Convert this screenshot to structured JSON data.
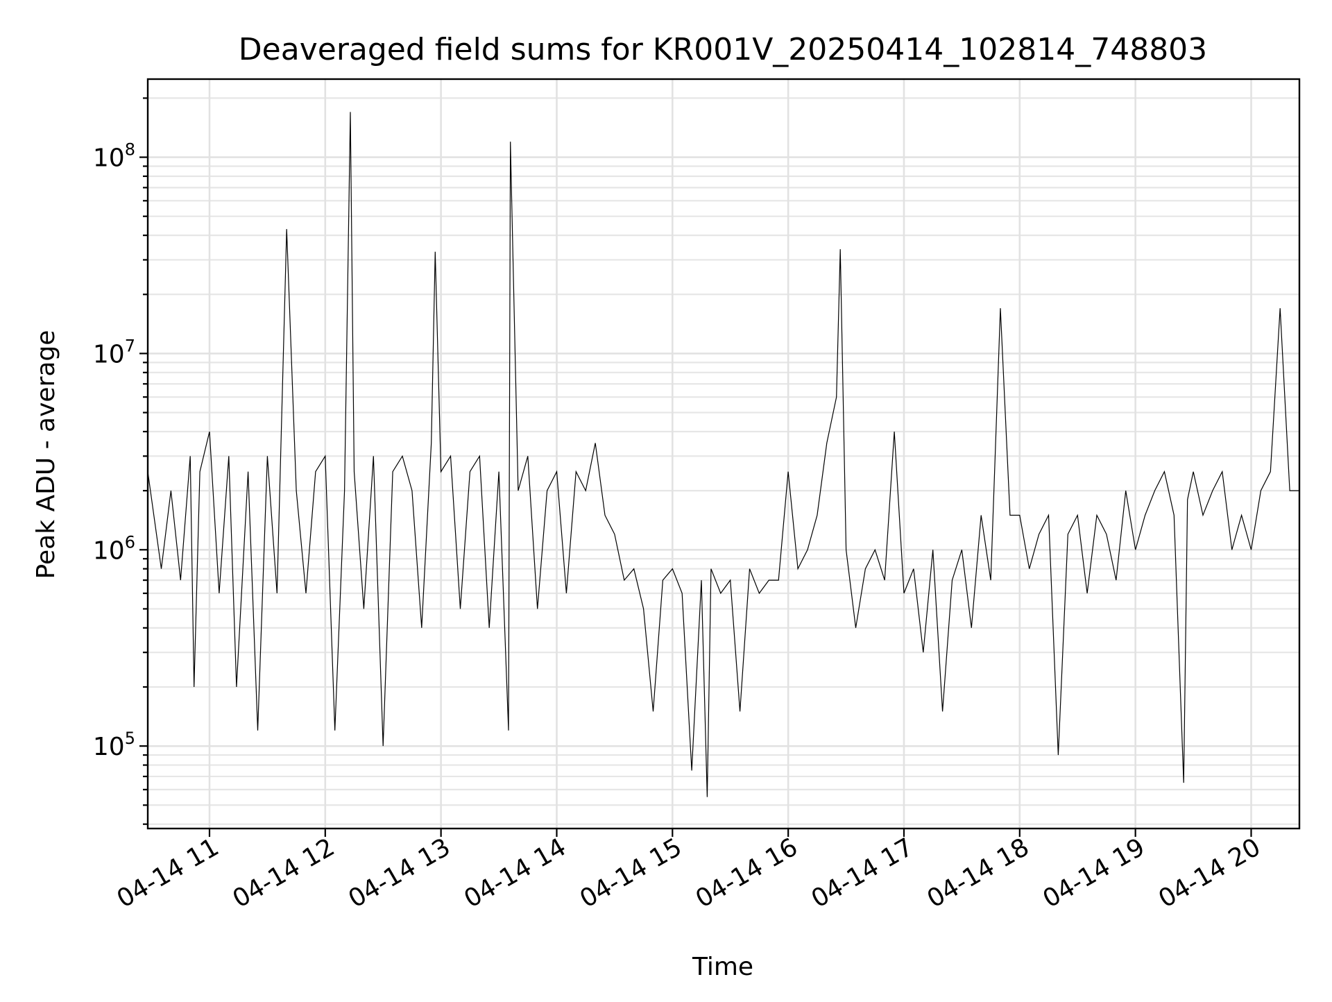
{
  "chart_data": {
    "type": "line",
    "title": "Deaveraged field sums for KR001V_20250414_102814_748803",
    "xlabel": "Time",
    "ylabel": "Peak ADU - average",
    "yscale": "log",
    "xlim": [
      "2025-04-14T10:28",
      "2025-04-14T20:25"
    ],
    "ylim": [
      38000,
      250000000
    ],
    "x_tick_labels": [
      "04-14 11",
      "04-14 12",
      "04-14 13",
      "04-14 14",
      "04-14 15",
      "04-14 16",
      "04-14 17",
      "04-14 18",
      "04-14 19",
      "04-14 20"
    ],
    "x_tick_values": [
      "2025-04-14T11:00",
      "2025-04-14T12:00",
      "2025-04-14T13:00",
      "2025-04-14T14:00",
      "2025-04-14T15:00",
      "2025-04-14T16:00",
      "2025-04-14T17:00",
      "2025-04-14T18:00",
      "2025-04-14T19:00",
      "2025-04-14T20:00"
    ],
    "y_tick_labels": [
      {
        "base": "10",
        "exp": "5",
        "value": 100000
      },
      {
        "base": "10",
        "exp": "6",
        "value": 1000000
      },
      {
        "base": "10",
        "exp": "7",
        "value": 10000000
      },
      {
        "base": "10",
        "exp": "8",
        "value": 100000000
      }
    ],
    "grid": true,
    "line_color": "#000000",
    "series": [
      {
        "x": [
          "2025-04-14T10:28",
          "2025-04-14T10:35",
          "2025-04-14T10:40",
          "2025-04-14T10:45",
          "2025-04-14T10:50",
          "2025-04-14T10:52",
          "2025-04-14T10:55",
          "2025-04-14T11:00",
          "2025-04-14T11:05",
          "2025-04-14T11:10",
          "2025-04-14T11:14",
          "2025-04-14T11:20",
          "2025-04-14T11:25",
          "2025-04-14T11:30",
          "2025-04-14T11:35",
          "2025-04-14T11:40",
          "2025-04-14T11:45",
          "2025-04-14T11:50",
          "2025-04-14T11:55",
          "2025-04-14T12:00",
          "2025-04-14T12:05",
          "2025-04-14T12:10",
          "2025-04-14T12:13",
          "2025-04-14T12:15",
          "2025-04-14T12:20",
          "2025-04-14T12:25",
          "2025-04-14T12:30",
          "2025-04-14T12:35",
          "2025-04-14T12:40",
          "2025-04-14T12:45",
          "2025-04-14T12:50",
          "2025-04-14T12:55",
          "2025-04-14T12:57",
          "2025-04-14T13:00",
          "2025-04-14T13:05",
          "2025-04-14T13:10",
          "2025-04-14T13:15",
          "2025-04-14T13:20",
          "2025-04-14T13:25",
          "2025-04-14T13:30",
          "2025-04-14T13:35",
          "2025-04-14T13:36",
          "2025-04-14T13:40",
          "2025-04-14T13:45",
          "2025-04-14T13:50",
          "2025-04-14T13:55",
          "2025-04-14T14:00",
          "2025-04-14T14:05",
          "2025-04-14T14:10",
          "2025-04-14T14:15",
          "2025-04-14T14:20",
          "2025-04-14T14:25",
          "2025-04-14T14:30",
          "2025-04-14T14:35",
          "2025-04-14T14:40",
          "2025-04-14T14:45",
          "2025-04-14T14:50",
          "2025-04-14T14:55",
          "2025-04-14T15:00",
          "2025-04-14T15:05",
          "2025-04-14T15:10",
          "2025-04-14T15:15",
          "2025-04-14T15:18",
          "2025-04-14T15:20",
          "2025-04-14T15:25",
          "2025-04-14T15:30",
          "2025-04-14T15:35",
          "2025-04-14T15:40",
          "2025-04-14T15:45",
          "2025-04-14T15:50",
          "2025-04-14T15:55",
          "2025-04-14T16:00",
          "2025-04-14T16:05",
          "2025-04-14T16:10",
          "2025-04-14T16:15",
          "2025-04-14T16:20",
          "2025-04-14T16:25",
          "2025-04-14T16:27",
          "2025-04-14T16:30",
          "2025-04-14T16:35",
          "2025-04-14T16:40",
          "2025-04-14T16:45",
          "2025-04-14T16:50",
          "2025-04-14T16:55",
          "2025-04-14T17:00",
          "2025-04-14T17:05",
          "2025-04-14T17:10",
          "2025-04-14T17:15",
          "2025-04-14T17:20",
          "2025-04-14T17:25",
          "2025-04-14T17:30",
          "2025-04-14T17:35",
          "2025-04-14T17:40",
          "2025-04-14T17:45",
          "2025-04-14T17:50",
          "2025-04-14T17:55",
          "2025-04-14T18:00",
          "2025-04-14T18:05",
          "2025-04-14T18:10",
          "2025-04-14T18:15",
          "2025-04-14T18:20",
          "2025-04-14T18:25",
          "2025-04-14T18:30",
          "2025-04-14T18:35",
          "2025-04-14T18:40",
          "2025-04-14T18:45",
          "2025-04-14T18:50",
          "2025-04-14T18:55",
          "2025-04-14T19:00",
          "2025-04-14T19:05",
          "2025-04-14T19:10",
          "2025-04-14T19:15",
          "2025-04-14T19:20",
          "2025-04-14T19:25",
          "2025-04-14T19:27",
          "2025-04-14T19:30",
          "2025-04-14T19:35",
          "2025-04-14T19:40",
          "2025-04-14T19:45",
          "2025-04-14T19:50",
          "2025-04-14T19:55",
          "2025-04-14T20:00",
          "2025-04-14T20:05",
          "2025-04-14T20:10",
          "2025-04-14T20:15",
          "2025-04-14T20:20",
          "2025-04-14T20:25"
        ],
        "y": [
          2500000,
          800000,
          2000000,
          700000,
          3000000,
          200000,
          2500000,
          4000000,
          600000,
          3000000,
          200000,
          2500000,
          120000,
          3000000,
          600000,
          43000000,
          2000000,
          600000,
          2500000,
          3000000,
          120000,
          2000000,
          170000000,
          2500000,
          500000,
          3000000,
          100000,
          2500000,
          3000000,
          2000000,
          400000,
          3500000,
          33000000,
          2500000,
          3000000,
          500000,
          2500000,
          3000000,
          400000,
          2500000,
          120000,
          120000000,
          2000000,
          3000000,
          500000,
          2000000,
          2500000,
          600000,
          2500000,
          2000000,
          3500000,
          1500000,
          1200000,
          700000,
          800000,
          500000,
          150000,
          700000,
          800000,
          600000,
          75000,
          700000,
          55000,
          800000,
          600000,
          700000,
          150000,
          800000,
          600000,
          700000,
          700000,
          2500000,
          800000,
          1000000,
          1500000,
          3500000,
          6000000,
          34000000,
          1000000,
          400000,
          800000,
          1000000,
          700000,
          4000000,
          600000,
          800000,
          300000,
          1000000,
          150000,
          700000,
          1000000,
          400000,
          1500000,
          700000,
          17000000,
          1500000,
          1500000,
          800000,
          1200000,
          1500000,
          90000,
          1200000,
          1500000,
          600000,
          1500000,
          1200000,
          700000,
          2000000,
          1000000,
          1500000,
          2000000,
          2500000,
          1500000,
          65000,
          1800000,
          2500000,
          1500000,
          2000000,
          2500000,
          1000000,
          1500000,
          1000000,
          2000000,
          2500000,
          17000000,
          2000000,
          2000000
        ]
      }
    ]
  }
}
